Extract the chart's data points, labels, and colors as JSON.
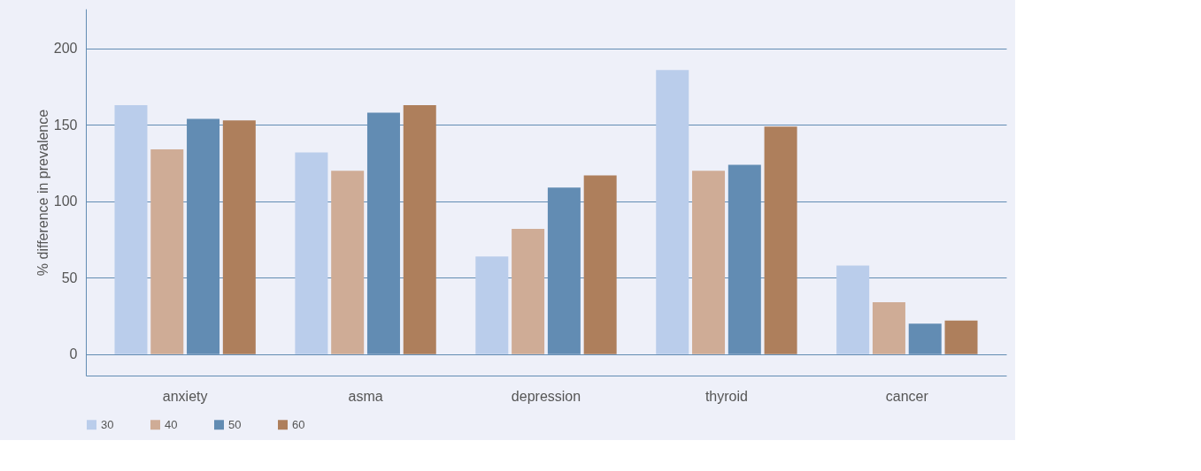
{
  "chart_data": {
    "type": "bar",
    "ylabel": "% difference in prevalence",
    "categories": [
      "anxiety",
      "asma",
      "depression",
      "thyroid",
      "cancer"
    ],
    "series": [
      {
        "name": "30",
        "color": "#bacdeb",
        "values": [
          163,
          132,
          64,
          186,
          58
        ]
      },
      {
        "name": "40",
        "color": "#cfac96",
        "values": [
          134,
          120,
          82,
          120,
          34
        ]
      },
      {
        "name": "50",
        "color": "#628cb3",
        "values": [
          154,
          158,
          109,
          124,
          20
        ]
      },
      {
        "name": "60",
        "color": "#ae7f5c",
        "values": [
          153,
          163,
          117,
          149,
          22
        ]
      }
    ],
    "ylim": [
      -14,
      226
    ],
    "yticks": [
      0,
      50,
      100,
      150,
      200
    ],
    "grid": "y",
    "legend": "bottom"
  }
}
